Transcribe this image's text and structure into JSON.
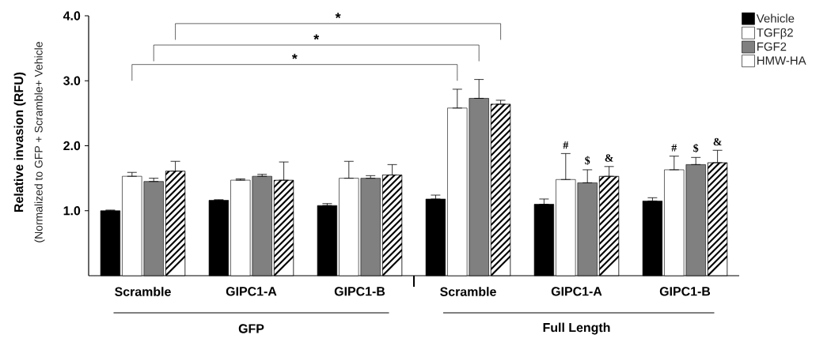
{
  "chart_data": {
    "type": "bar",
    "ylabel": "Relative invasion  (RFU)",
    "categories": [
      "Scramble",
      "GIPC1-A",
      "GIPC1-B",
      "Scramble",
      "GIPC1-A",
      "GIPC1-B"
    ],
    "series": [
      {
        "name": "Vehicle",
        "color": "#000000",
        "values": [
          1.0,
          1.16,
          1.08,
          1.18,
          1.1,
          1.15
        ],
        "errors": [
          [
            1.0,
            1.01
          ],
          [
            1.16,
            1.17
          ],
          [
            1.08,
            1.11
          ],
          [
            1.18,
            1.24
          ],
          [
            1.1,
            1.18
          ],
          [
            1.15,
            1.2
          ]
        ]
      },
      {
        "name": "TGFβ2",
        "color": "#ffffff",
        "values": [
          1.53,
          1.47,
          1.5,
          2.58,
          1.48,
          1.63
        ],
        "errors": [
          [
            1.53,
            1.59
          ],
          [
            1.47,
            1.49
          ],
          [
            1.5,
            1.76
          ],
          [
            2.58,
            2.87
          ],
          [
            1.48,
            1.88
          ],
          [
            1.63,
            1.84
          ]
        ]
      },
      {
        "name": "FGF2",
        "color": "#808080",
        "values": [
          1.45,
          1.53,
          1.5,
          2.73,
          1.43,
          1.71
        ],
        "errors": [
          [
            1.45,
            1.5
          ],
          [
            1.53,
            1.56
          ],
          [
            1.5,
            1.54
          ],
          [
            2.73,
            3.02
          ],
          [
            1.43,
            1.63
          ],
          [
            1.71,
            1.82
          ]
        ]
      },
      {
        "name": "HMW-HA",
        "color": "#ffffff",
        "values": [
          1.61,
          1.47,
          1.55,
          2.64,
          1.53,
          1.74
        ],
        "errors": [
          [
            1.61,
            1.76
          ],
          [
            1.47,
            1.75
          ],
          [
            1.55,
            1.71
          ],
          [
            2.64,
            2.7
          ],
          [
            1.53,
            1.68
          ],
          [
            1.74,
            1.93
          ]
        ]
      }
    ],
    "ylim": [
      0,
      4
    ],
    "yticks": [
      {
        "value": 1,
        "label": "1.0"
      },
      {
        "value": 2,
        "label": "2.0"
      },
      {
        "value": 3,
        "label": "3.0"
      },
      {
        "value": 4,
        "label": "4.0"
      }
    ],
    "legend": "top right",
    "annotations": [
      "*",
      "*",
      "*",
      "#",
      "$",
      "&",
      "#",
      "$",
      "&",
      "GFP",
      "Full Length",
      "(Normalized to  GFP + Scramble+ Vehicle"
    ]
  }
}
